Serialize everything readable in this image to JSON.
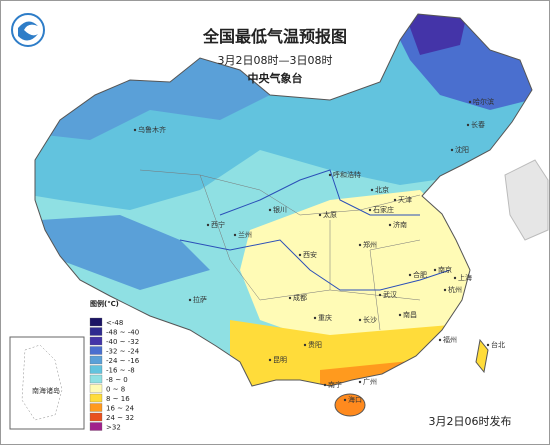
{
  "header": {
    "title": "全国最低气温预报图",
    "period": "3月2日08时—3日08时",
    "issuer": "中央气象台"
  },
  "cities": [
    "哈尔滨",
    "长春",
    "沈阳",
    "乌鲁木齐",
    "呼和浩特",
    "北京",
    "天津",
    "石家庄",
    "太原",
    "银川",
    "济南",
    "西宁",
    "兰州",
    "郑州",
    "西安",
    "南京",
    "合肥",
    "上海",
    "拉萨",
    "成都",
    "武汉",
    "杭州",
    "重庆",
    "长沙",
    "南昌",
    "贵阳",
    "福州",
    "昆明",
    "台北",
    "南宁",
    "广州",
    "海口"
  ],
  "legend": {
    "title": "图例(℃)",
    "items": [
      {
        "label": "<-48",
        "color": "#1b1464"
      },
      {
        "label": "-48 ~ -40",
        "color": "#2e2a8f"
      },
      {
        "label": "-40 ~ -32",
        "color": "#4434a8"
      },
      {
        "label": "-32 ~ -24",
        "color": "#4a6fcf"
      },
      {
        "label": "-24 ~ -16",
        "color": "#5aa0d8"
      },
      {
        "label": "-16 ~ -8",
        "color": "#62c3de"
      },
      {
        "label": "-8 ~ 0",
        "color": "#8fe0e3"
      },
      {
        "label": "0 ~ 8",
        "color": "#fffbb6"
      },
      {
        "label": "8 ~ 16",
        "color": "#ffdc3a"
      },
      {
        "label": "16 ~ 24",
        "color": "#ff9a1e"
      },
      {
        "label": "24 ~ 32",
        "color": "#e8501e"
      },
      {
        "label": ">32",
        "color": "#a0208c"
      }
    ]
  },
  "inset": {
    "label": "南海诸岛"
  },
  "footer": {
    "issued": "3月2日06时发布"
  }
}
